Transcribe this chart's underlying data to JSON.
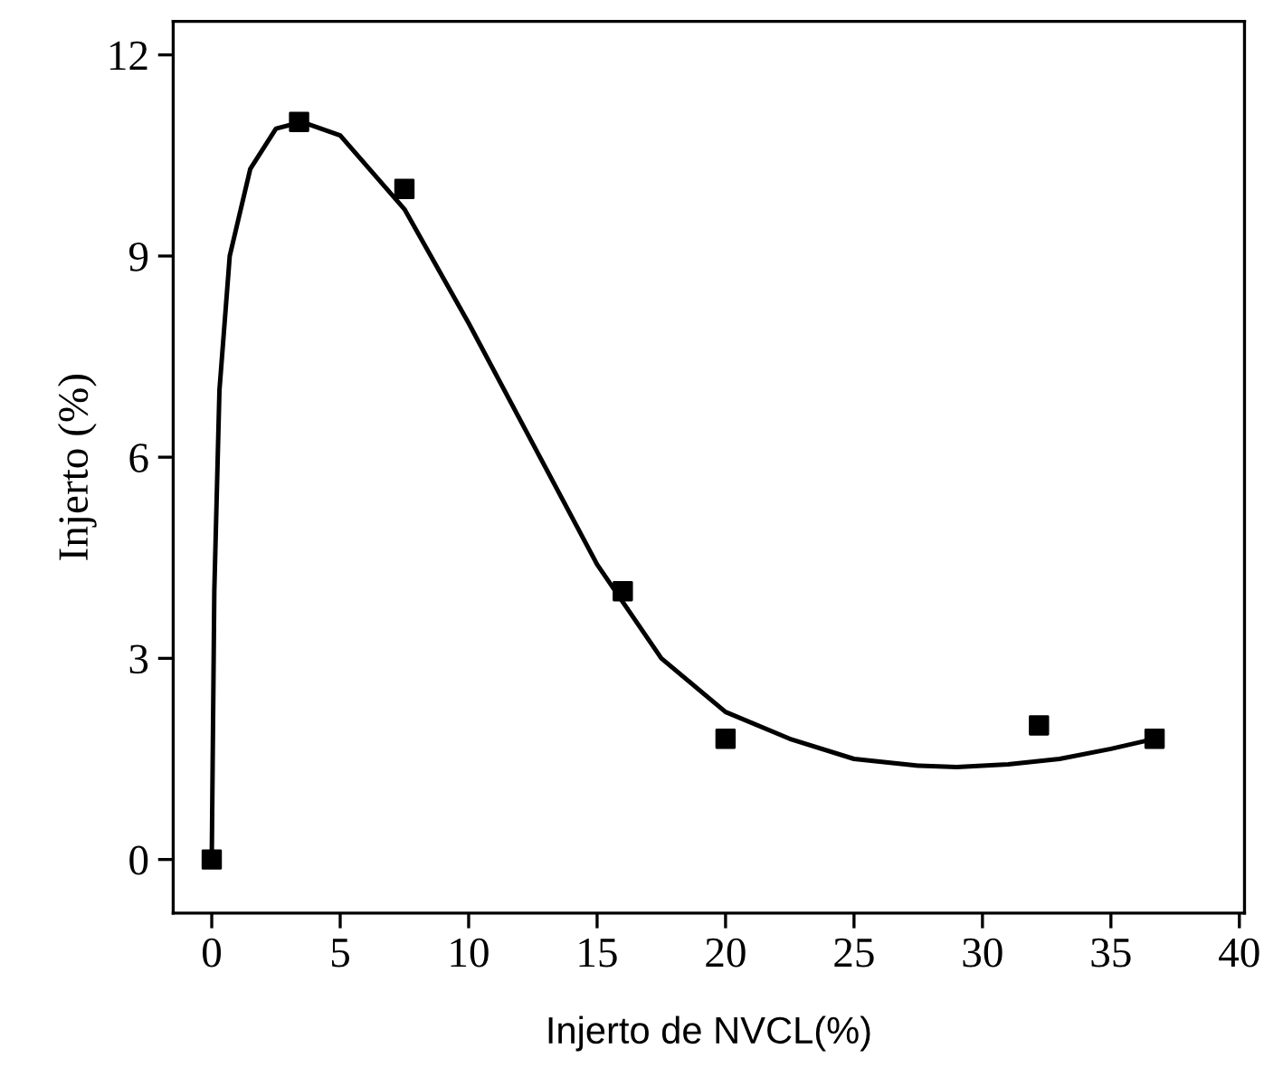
{
  "chart_data": {
    "type": "scatter",
    "xlabel": "Injerto de NVCL(%)",
    "ylabel": "Injerto (%)",
    "xlim": [
      -1.5,
      40.2
    ],
    "ylim": [
      -0.8,
      12.5
    ],
    "xticks": [
      0,
      5,
      10,
      15,
      20,
      25,
      30,
      35,
      40
    ],
    "yticks": [
      0,
      3,
      6,
      9,
      12
    ],
    "grid": false,
    "legend": false,
    "series": [
      {
        "color": "#000000",
        "marker": "square",
        "x": [
          0,
          3.4,
          7.5,
          16,
          20,
          32.2,
          36.7
        ],
        "values": [
          0,
          11,
          10,
          4,
          1.8,
          2,
          1.8
        ]
      },
      {
        "type": "line",
        "color": "#000000",
        "marker": "none",
        "line_style": "solid",
        "x": [
          0,
          0.1,
          0.3,
          0.7,
          1.5,
          2.5,
          3.5,
          5,
          7.5,
          10,
          12.5,
          15,
          17.5,
          20,
          22.5,
          25,
          27.5,
          29,
          31,
          33,
          35,
          36.7
        ],
        "values": [
          0,
          4,
          7,
          9,
          10.3,
          10.9,
          11,
          10.8,
          9.7,
          8,
          6.2,
          4.4,
          3,
          2.2,
          1.8,
          1.5,
          1.4,
          1.38,
          1.42,
          1.5,
          1.65,
          1.8
        ]
      }
    ]
  }
}
